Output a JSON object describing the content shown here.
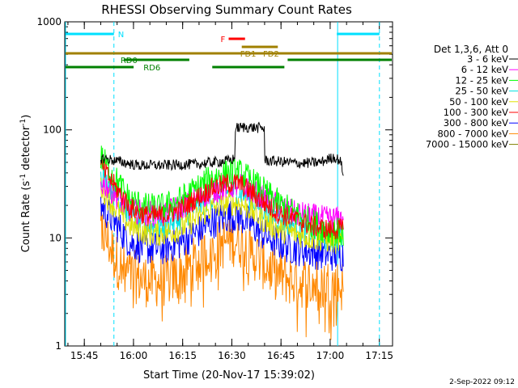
{
  "chart_data": {
    "type": "line",
    "title": "RHESSI Observing Summary Count Rates",
    "xlabel": "Start Time (20-Nov-17 15:39:02)",
    "ylabel_main": "Count Rate (s",
    "ylabel_sup1": "-1",
    "ylabel_mid": " detector",
    "ylabel_sup2": "-1",
    "ylabel_end": ")",
    "yscale": "log",
    "ylim": [
      1,
      1000
    ],
    "xlim_minutes": [
      0,
      100
    ],
    "x_ticks": [
      {
        "label": "15:45",
        "minute": 5.97
      },
      {
        "label": "16:00",
        "minute": 20.97
      },
      {
        "label": "16:15",
        "minute": 35.97
      },
      {
        "label": "16:30",
        "minute": 50.97
      },
      {
        "label": "16:45",
        "minute": 65.97
      },
      {
        "label": "17:00",
        "minute": 80.97
      },
      {
        "label": "17:15",
        "minute": 95.97
      }
    ],
    "y_ticks": [
      {
        "label": "1",
        "value": 1
      },
      {
        "label": "10",
        "value": 10
      },
      {
        "label": "100",
        "value": 100
      },
      {
        "label": "1000",
        "value": 1000
      }
    ],
    "legend_title": "Det 1,3,6, Att 0",
    "legend_position": "right",
    "series": [
      {
        "name": "3 - 6 keV",
        "color": "#000000",
        "noise": 0.05,
        "points": [
          [
            11,
            55
          ],
          [
            13,
            54
          ],
          [
            15,
            52
          ],
          [
            18,
            50
          ],
          [
            22,
            47
          ],
          [
            30,
            47
          ],
          [
            40,
            48
          ],
          [
            50,
            52
          ],
          [
            52,
            54
          ],
          [
            52.5,
            104
          ],
          [
            55,
            106
          ],
          [
            60,
            104
          ],
          [
            61,
            103
          ],
          [
            61.5,
            52
          ],
          [
            65,
            51
          ],
          [
            72,
            49
          ],
          [
            78,
            50
          ],
          [
            80,
            53
          ],
          [
            82,
            56
          ],
          [
            84,
            52
          ],
          [
            85,
            40
          ]
        ]
      },
      {
        "name": "6 - 12 keV",
        "color": "#ff00ff",
        "noise": 0.12,
        "points": [
          [
            11,
            32
          ],
          [
            13,
            30
          ],
          [
            16,
            24
          ],
          [
            20,
            18
          ],
          [
            25,
            17
          ],
          [
            30,
            17
          ],
          [
            35,
            19
          ],
          [
            40,
            23
          ],
          [
            45,
            27
          ],
          [
            50,
            30
          ],
          [
            53,
            31
          ],
          [
            56,
            28
          ],
          [
            60,
            24
          ],
          [
            65,
            20
          ],
          [
            70,
            17
          ],
          [
            75,
            16
          ],
          [
            80,
            15
          ],
          [
            85,
            15
          ]
        ]
      },
      {
        "name": "12 - 25 keV",
        "color": "#00ff00",
        "noise": 0.14,
        "points": [
          [
            11,
            56
          ],
          [
            13,
            45
          ],
          [
            16,
            33
          ],
          [
            20,
            22
          ],
          [
            25,
            19
          ],
          [
            30,
            19
          ],
          [
            35,
            22
          ],
          [
            40,
            28
          ],
          [
            45,
            36
          ],
          [
            50,
            40
          ],
          [
            53,
            40
          ],
          [
            56,
            35
          ],
          [
            60,
            28
          ],
          [
            65,
            21
          ],
          [
            70,
            17
          ],
          [
            75,
            14
          ],
          [
            80,
            12
          ],
          [
            85,
            11
          ]
        ]
      },
      {
        "name": "25 - 50 keV",
        "color": "#00e0e0",
        "noise": 0.12,
        "points": [
          [
            11,
            40
          ],
          [
            13,
            32
          ],
          [
            16,
            24
          ],
          [
            20,
            16
          ],
          [
            25,
            13
          ],
          [
            30,
            13
          ],
          [
            35,
            15
          ],
          [
            40,
            19
          ],
          [
            45,
            24
          ],
          [
            50,
            27
          ],
          [
            53,
            27
          ],
          [
            56,
            24
          ],
          [
            60,
            19
          ],
          [
            65,
            15
          ],
          [
            70,
            13
          ],
          [
            75,
            11
          ],
          [
            80,
            10
          ],
          [
            85,
            10
          ]
        ]
      },
      {
        "name": "50 - 100 keV",
        "color": "#e0e000",
        "noise": 0.12,
        "points": [
          [
            11,
            30
          ],
          [
            13,
            24
          ],
          [
            16,
            18
          ],
          [
            20,
            13
          ],
          [
            25,
            11
          ],
          [
            30,
            11
          ],
          [
            35,
            12
          ],
          [
            40,
            15
          ],
          [
            45,
            19
          ],
          [
            50,
            21
          ],
          [
            53,
            21
          ],
          [
            56,
            19
          ],
          [
            60,
            15
          ],
          [
            65,
            12
          ],
          [
            70,
            11
          ],
          [
            75,
            10
          ],
          [
            80,
            9.5
          ],
          [
            85,
            9
          ]
        ]
      },
      {
        "name": "100 - 300 keV",
        "color": "#ff0000",
        "noise": 0.1,
        "points": [
          [
            11,
            46
          ],
          [
            13,
            38
          ],
          [
            16,
            28
          ],
          [
            20,
            19
          ],
          [
            25,
            16
          ],
          [
            30,
            16
          ],
          [
            35,
            18
          ],
          [
            40,
            23
          ],
          [
            45,
            29
          ],
          [
            50,
            32
          ],
          [
            53,
            32
          ],
          [
            56,
            28
          ],
          [
            60,
            22
          ],
          [
            65,
            17
          ],
          [
            70,
            15
          ],
          [
            75,
            13
          ],
          [
            80,
            12
          ],
          [
            85,
            12
          ]
        ]
      },
      {
        "name": "300 - 800 keV",
        "color": "#0000ff",
        "noise": 0.16,
        "points": [
          [
            11,
            20
          ],
          [
            13,
            17
          ],
          [
            16,
            13
          ],
          [
            20,
            9
          ],
          [
            25,
            8
          ],
          [
            30,
            8
          ],
          [
            35,
            9
          ],
          [
            40,
            11
          ],
          [
            45,
            14
          ],
          [
            50,
            16
          ],
          [
            53,
            16
          ],
          [
            56,
            14
          ],
          [
            60,
            11
          ],
          [
            65,
            9
          ],
          [
            70,
            8
          ],
          [
            75,
            7.5
          ],
          [
            80,
            7
          ],
          [
            85,
            7
          ]
        ]
      },
      {
        "name": "800 - 7000 keV",
        "color": "#ff8800",
        "noise": 0.25,
        "points": [
          [
            11,
            12
          ],
          [
            13,
            9.5
          ],
          [
            16,
            6
          ],
          [
            20,
            4.5
          ],
          [
            25,
            4
          ],
          [
            30,
            4
          ],
          [
            35,
            4.5
          ],
          [
            40,
            6
          ],
          [
            45,
            8
          ],
          [
            50,
            9.5
          ],
          [
            53,
            9.5
          ],
          [
            56,
            8
          ],
          [
            60,
            6
          ],
          [
            65,
            4.5
          ],
          [
            70,
            4
          ],
          [
            75,
            3.8
          ],
          [
            80,
            3.7
          ],
          [
            85,
            3.6
          ]
        ]
      },
      {
        "name": "7000 - 15000 keV",
        "color": "#808000",
        "noise": 0,
        "points": []
      }
    ],
    "attenuator_bars": [
      {
        "label": "N",
        "color": "#00e0ff",
        "segments": [
          [
            0,
            15
          ],
          [
            83,
            96
          ]
        ]
      },
      {
        "label": "F",
        "color": "#ff0000",
        "segments": [
          [
            50,
            55
          ]
        ]
      },
      {
        "label": "FD1",
        "color": "#a08000",
        "segments": [
          [
            54,
            62
          ]
        ]
      },
      {
        "label": "FD2",
        "color": "#a08000",
        "segments": [
          [
            61,
            65
          ]
        ]
      },
      {
        "label": "",
        "color": "#a08000",
        "segments": [
          [
            0,
            100
          ]
        ]
      },
      {
        "label": "RD0",
        "color": "#008000",
        "segments": [
          [
            18,
            38
          ],
          [
            68,
            100
          ]
        ]
      },
      {
        "label": "RD6",
        "color": "#008000",
        "segments": [
          [
            0,
            21
          ],
          [
            45,
            67
          ]
        ]
      }
    ],
    "night_lines": {
      "solid": [
        0,
        83
      ],
      "dashed": [
        15,
        96
      ]
    }
  },
  "timestamp": "2-Sep-2022 09:12"
}
